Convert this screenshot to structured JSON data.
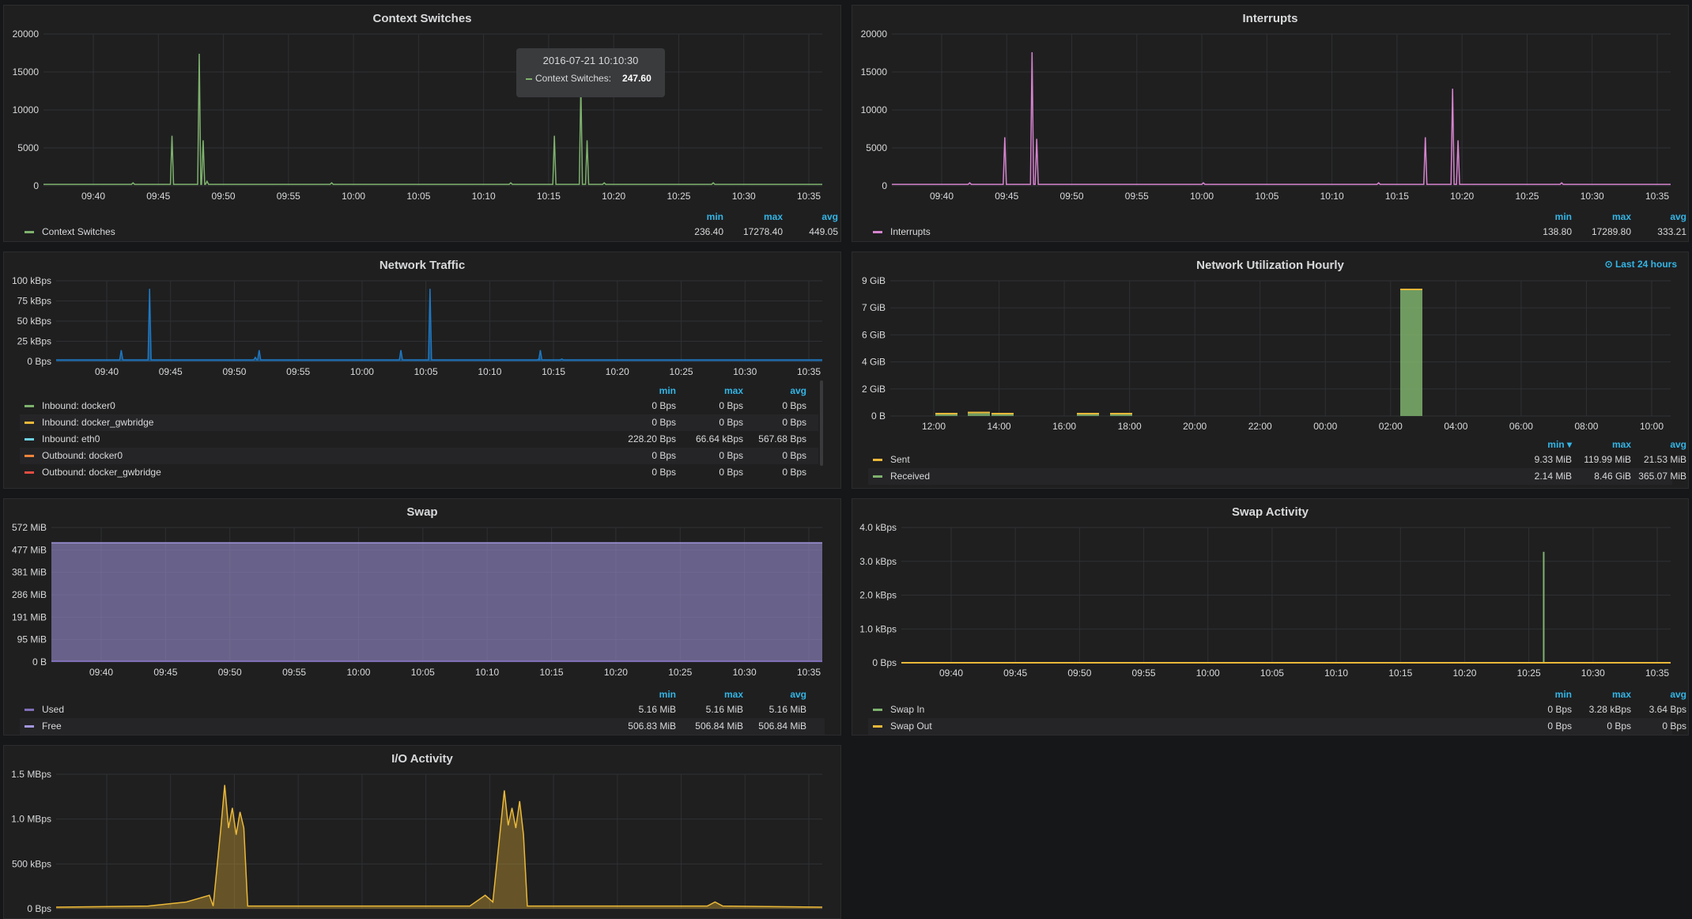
{
  "colors": {
    "green": "#7eb26d",
    "pink": "#d683ce",
    "blue": "#1f78c1",
    "yellow": "#eab839",
    "cyan": "#6ed0e0",
    "orange": "#ef843c",
    "red": "#e24d42",
    "purple": "#806eb7",
    "lightpurple": "#a497e0",
    "accent": "#33b5e5"
  },
  "time_ticks": [
    "09:40",
    "09:45",
    "09:50",
    "09:55",
    "10:00",
    "10:05",
    "10:10",
    "10:15",
    "10:20",
    "10:25",
    "10:30",
    "10:35"
  ],
  "legend_headers": {
    "min": "min",
    "max": "max",
    "avg": "avg",
    "min_sorted": "min ▾"
  },
  "panels": {
    "ctx": {
      "title": "Context Switches",
      "y_ticks": [
        "20000",
        "15000",
        "10000",
        "5000",
        "0"
      ],
      "legend": [
        {
          "name": "Context Switches",
          "color": "#7eb26d",
          "min": "236.40",
          "max": "17278.40",
          "avg": "449.05"
        }
      ],
      "tooltip": {
        "time": "2016-07-21 10:10:30",
        "series": "Context Switches:",
        "value": "247.60"
      }
    },
    "irq": {
      "title": "Interrupts",
      "y_ticks": [
        "20000",
        "15000",
        "10000",
        "5000",
        "0"
      ],
      "legend": [
        {
          "name": "Interrupts",
          "color": "#d683ce",
          "min": "138.80",
          "max": "17289.80",
          "avg": "333.21"
        }
      ]
    },
    "net": {
      "title": "Network Traffic",
      "y_ticks": [
        "100 kBps",
        "75 kBps",
        "50 kBps",
        "25 kBps",
        "0 Bps"
      ],
      "legend": [
        {
          "name": "Inbound: docker0",
          "color": "#7eb26d",
          "min": "0 Bps",
          "max": "0 Bps",
          "avg": "0 Bps"
        },
        {
          "name": "Inbound: docker_gwbridge",
          "color": "#eab839",
          "min": "0 Bps",
          "max": "0 Bps",
          "avg": "0 Bps"
        },
        {
          "name": "Inbound: eth0",
          "color": "#6ed0e0",
          "min": "228.20 Bps",
          "max": "66.64 kBps",
          "avg": "567.68 Bps"
        },
        {
          "name": "Outbound: docker0",
          "color": "#ef843c",
          "min": "0 Bps",
          "max": "0 Bps",
          "avg": "0 Bps"
        },
        {
          "name": "Outbound: docker_gwbridge",
          "color": "#e24d42",
          "min": "0 Bps",
          "max": "0 Bps",
          "avg": "0 Bps"
        }
      ]
    },
    "util": {
      "title": "Network Utilization Hourly",
      "badge": "⊙ Last 24 hours",
      "y_ticks": [
        "9 GiB",
        "7 GiB",
        "6 GiB",
        "4 GiB",
        "2 GiB",
        "0 B"
      ],
      "x_ticks": [
        "12:00",
        "14:00",
        "16:00",
        "18:00",
        "20:00",
        "22:00",
        "00:00",
        "02:00",
        "04:00",
        "06:00",
        "08:00",
        "10:00"
      ],
      "legend": [
        {
          "name": "Sent",
          "color": "#eab839",
          "min": "9.33 MiB",
          "max": "119.99 MiB",
          "avg": "21.53 MiB"
        },
        {
          "name": "Received",
          "color": "#7eb26d",
          "min": "2.14 MiB",
          "max": "8.46 GiB",
          "avg": "365.07 MiB"
        }
      ]
    },
    "swap": {
      "title": "Swap",
      "y_ticks": [
        "572 MiB",
        "477 MiB",
        "381 MiB",
        "286 MiB",
        "191 MiB",
        "95 MiB",
        "0 B"
      ],
      "legend": [
        {
          "name": "Used",
          "color": "#806eb7",
          "min": "5.16 MiB",
          "max": "5.16 MiB",
          "avg": "5.16 MiB"
        },
        {
          "name": "Free",
          "color": "#a497e0",
          "min": "506.83 MiB",
          "max": "506.84 MiB",
          "avg": "506.84 MiB"
        }
      ]
    },
    "swapact": {
      "title": "Swap Activity",
      "y_ticks": [
        "4.0 kBps",
        "3.0 kBps",
        "2.0 kBps",
        "1.0 kBps",
        "0 Bps"
      ],
      "legend": [
        {
          "name": "Swap In",
          "color": "#7eb26d",
          "min": "0 Bps",
          "max": "3.28 kBps",
          "avg": "3.64 Bps"
        },
        {
          "name": "Swap Out",
          "color": "#eab839",
          "min": "0 Bps",
          "max": "0 Bps",
          "avg": "0 Bps"
        }
      ]
    },
    "io": {
      "title": "I/O Activity",
      "y_ticks": [
        "1.5 MBps",
        "1.0 MBps",
        "500 kBps",
        "0 Bps"
      ]
    }
  }
}
